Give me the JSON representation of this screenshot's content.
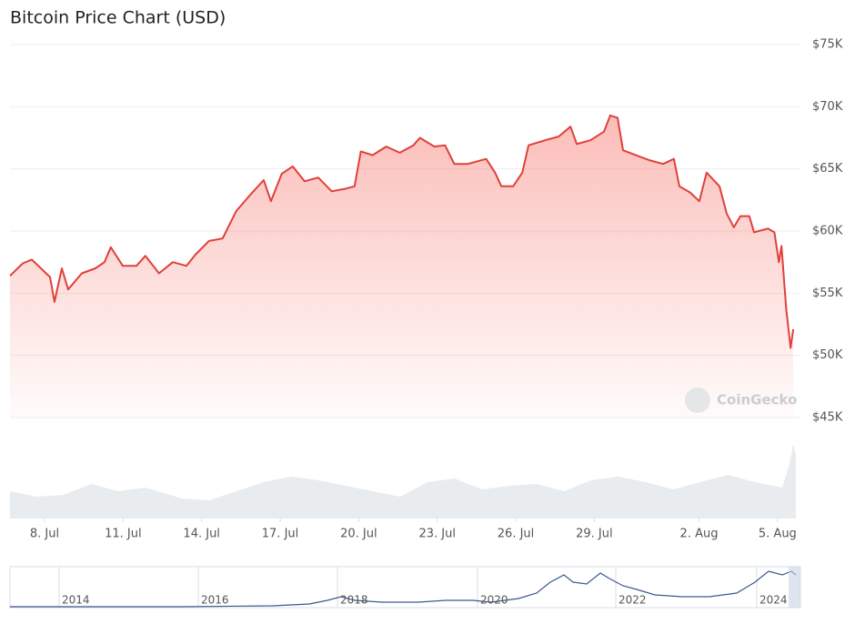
{
  "chart_data": {
    "type": "area",
    "title": "Bitcoin Price Chart (USD)",
    "watermark": "CoinGecko",
    "color": "#e0403a",
    "xlim": [
      6.68,
      36.7
    ],
    "xticks": [
      {
        "value": 8,
        "label": "8. Jul"
      },
      {
        "value": 11,
        "label": "11. Jul"
      },
      {
        "value": 14,
        "label": "14. Jul"
      },
      {
        "value": 17,
        "label": "17. Jul"
      },
      {
        "value": 20,
        "label": "20. Jul"
      },
      {
        "value": 23,
        "label": "23. Jul"
      },
      {
        "value": 26,
        "label": "26. Jul"
      },
      {
        "value": 29,
        "label": "29. Jul"
      },
      {
        "value": 33,
        "label": "2. Aug"
      },
      {
        "value": 36,
        "label": "5. Aug"
      }
    ],
    "ylim": [
      45000,
      75000
    ],
    "yticks": [
      {
        "value": 45000,
        "label": "$45K"
      },
      {
        "value": 50000,
        "label": "$50K"
      },
      {
        "value": 55000,
        "label": "$55K"
      },
      {
        "value": 60000,
        "label": "$60K"
      },
      {
        "value": 65000,
        "label": "$65K"
      },
      {
        "value": 70000,
        "label": "$70K"
      },
      {
        "value": 75000,
        "label": "$75K"
      }
    ],
    "grid": true,
    "x": [
      6.68,
      7.17,
      7.51,
      7.86,
      8.21,
      8.38,
      8.66,
      8.9,
      9.42,
      9.94,
      10.29,
      10.53,
      10.99,
      11.51,
      11.85,
      12.37,
      12.9,
      13.42,
      13.76,
      14.28,
      14.8,
      15.32,
      15.85,
      16.37,
      16.65,
      17.06,
      17.48,
      17.93,
      18.45,
      18.97,
      19.49,
      19.84,
      20.08,
      20.53,
      21.05,
      21.57,
      22.09,
      22.34,
      22.89,
      23.3,
      23.65,
      24.17,
      24.87,
      25.21,
      25.45,
      25.9,
      26.25,
      26.49,
      27.12,
      27.64,
      28.09,
      28.33,
      28.85,
      29.37,
      29.61,
      29.89,
      30.1,
      30.58,
      31.1,
      31.63,
      32.04,
      32.25,
      32.66,
      33.01,
      33.29,
      33.78,
      34.06,
      34.33,
      34.58,
      34.92,
      35.1,
      35.63,
      35.88,
      36.05,
      36.15,
      36.33,
      36.5,
      36.6
    ],
    "values": [
      56400,
      57400,
      57700,
      57000,
      56300,
      54300,
      57000,
      55300,
      56600,
      57000,
      57500,
      58700,
      57200,
      57200,
      58000,
      56600,
      57500,
      57200,
      58100,
      59200,
      59400,
      61600,
      62900,
      64100,
      62400,
      64600,
      65200,
      64000,
      64300,
      63200,
      63400,
      63600,
      66400,
      66100,
      66800,
      66300,
      66900,
      67500,
      66800,
      66900,
      65400,
      65400,
      65800,
      64700,
      63600,
      63600,
      64700,
      66900,
      67300,
      67600,
      68400,
      67000,
      67300,
      68000,
      69300,
      69100,
      66500,
      66100,
      65700,
      65400,
      65800,
      63600,
      63100,
      62400,
      64700,
      63600,
      61400,
      60300,
      61200,
      61200,
      59900,
      60200,
      59900,
      57500,
      58800,
      53700,
      50600,
      52100
    ],
    "navigator_labels": [
      "2014",
      "2016",
      "2018",
      "2020",
      "2022",
      "2024"
    ]
  }
}
